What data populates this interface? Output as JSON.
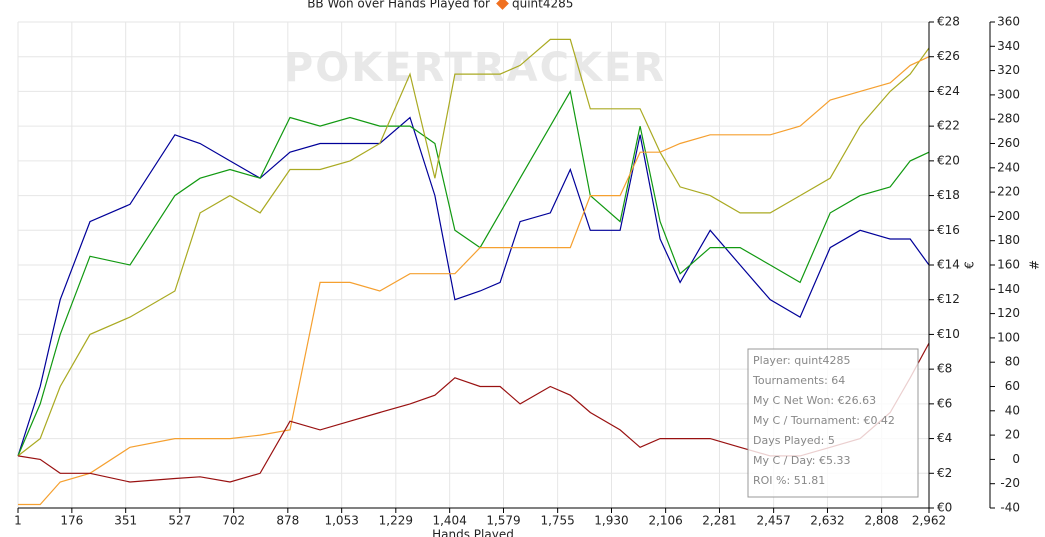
{
  "chart_data": {
    "type": "line",
    "title": "BB Won over Hands Played for",
    "title_player": "quint4285",
    "xlabel": "Hands Played",
    "ylabel": "€",
    "y2label": "#",
    "watermark": "POKERTRACKER",
    "grid": true,
    "x": [
      1,
      73,
      138,
      235,
      365,
      511,
      593,
      690,
      788,
      885,
      983,
      1080,
      1177,
      1275,
      1356,
      1421,
      1503,
      1568,
      1633,
      1731,
      1796,
      1861,
      1958,
      2023,
      2088,
      2153,
      2251,
      2348,
      2446,
      2543,
      2641,
      2738,
      2836,
      2901,
      2962
    ],
    "xlim": [
      1,
      2962
    ],
    "xticks": [
      1,
      176,
      351,
      527,
      702,
      878,
      {
        "value": 1053,
        "label": "1,053"
      },
      {
        "value": 1229,
        "label": "1,229"
      },
      {
        "value": 1404,
        "label": "1,404"
      },
      {
        "value": 1579,
        "label": "1,579"
      },
      {
        "value": 1755,
        "label": "1,755"
      },
      {
        "value": 1930,
        "label": "1,930"
      },
      {
        "value": 2106,
        "label": "2,106"
      },
      {
        "value": 2281,
        "label": "2,281"
      },
      {
        "value": 2457,
        "label": "2,457"
      },
      {
        "value": 2632,
        "label": "2,632"
      },
      {
        "value": 2808,
        "label": "2,808"
      },
      {
        "value": 2962,
        "label": "2,962"
      }
    ],
    "ylim": [
      0,
      28
    ],
    "yticks": [
      {
        "value": 0,
        "label": "€0"
      },
      {
        "value": 2,
        "label": "€2"
      },
      {
        "value": 4,
        "label": "€4"
      },
      {
        "value": 6,
        "label": "€6"
      },
      {
        "value": 8,
        "label": "€8"
      },
      {
        "value": 10,
        "label": "€10"
      },
      {
        "value": 12,
        "label": "€12"
      },
      {
        "value": 14,
        "label": "€14"
      },
      {
        "value": 16,
        "label": "€16"
      },
      {
        "value": 18,
        "label": "€18"
      },
      {
        "value": 20,
        "label": "€20"
      },
      {
        "value": 22,
        "label": "€22"
      },
      {
        "value": 24,
        "label": "€24"
      },
      {
        "value": 26,
        "label": "€26"
      },
      {
        "value": 28,
        "label": "€28"
      }
    ],
    "y2lim": [
      -40,
      360
    ],
    "y2ticks": [
      -40,
      -20,
      0,
      20,
      40,
      60,
      80,
      100,
      120,
      140,
      160,
      180,
      200,
      220,
      240,
      260,
      280,
      300,
      320,
      340,
      360
    ],
    "series": [
      {
        "color": "#000099",
        "values": [
          3,
          7,
          12,
          16.5,
          17.5,
          21.5,
          21,
          20,
          19,
          20.5,
          21,
          21,
          21,
          22.5,
          18,
          12,
          12.5,
          13,
          16.5,
          17,
          19.5,
          16,
          16,
          21.5,
          15.5,
          13,
          16,
          14,
          12,
          11,
          15,
          16,
          15.5,
          15.5,
          14
        ]
      },
      {
        "color": "#119911",
        "values": [
          3,
          6,
          10,
          14.5,
          14,
          18,
          19,
          19.5,
          19,
          22.5,
          22,
          22.5,
          22,
          22,
          21,
          16,
          15,
          17,
          19,
          22,
          24,
          18,
          16.5,
          22,
          16.5,
          13.5,
          15,
          15,
          14,
          13,
          17,
          18,
          18.5,
          20,
          20.5
        ]
      },
      {
        "color": "#aaaa22",
        "values": [
          3,
          4,
          7,
          10,
          11,
          12.5,
          17,
          18,
          17,
          19.5,
          19.5,
          20,
          21,
          25,
          19,
          25,
          25,
          25,
          25.5,
          27,
          27,
          23,
          23,
          23,
          20.5,
          18.5,
          18,
          17,
          17,
          18,
          19,
          22,
          24,
          25,
          26.5
        ]
      },
      {
        "color": "#f5a030",
        "values": [
          0.2,
          0.2,
          1.5,
          2,
          3.5,
          4,
          4,
          4,
          4.2,
          4.5,
          13,
          13,
          12.5,
          13.5,
          13.5,
          13.5,
          15,
          15,
          15,
          15,
          15,
          18,
          18,
          20.5,
          20.5,
          21,
          21.5,
          21.5,
          21.5,
          22,
          23.5,
          24,
          24.5,
          25.5,
          26
        ]
      },
      {
        "color": "#991111",
        "values": [
          3,
          2.8,
          2,
          2,
          1.5,
          1.7,
          1.8,
          1.5,
          2,
          5,
          4.5,
          5,
          5.5,
          6,
          6.5,
          7.5,
          7,
          7,
          6,
          7,
          6.5,
          5.5,
          4.5,
          3.5,
          4,
          4,
          4,
          3.5,
          3,
          3,
          3.5,
          4,
          5.5,
          7.5,
          9.5
        ]
      }
    ],
    "info_box": [
      "Player: quint4285",
      "Tournaments: 64",
      "My C Net Won: €26.63",
      "My C / Tournament: €0.42",
      "Days Played: 5",
      "My C / Day: €5.33",
      "ROI %: 51.81"
    ]
  }
}
